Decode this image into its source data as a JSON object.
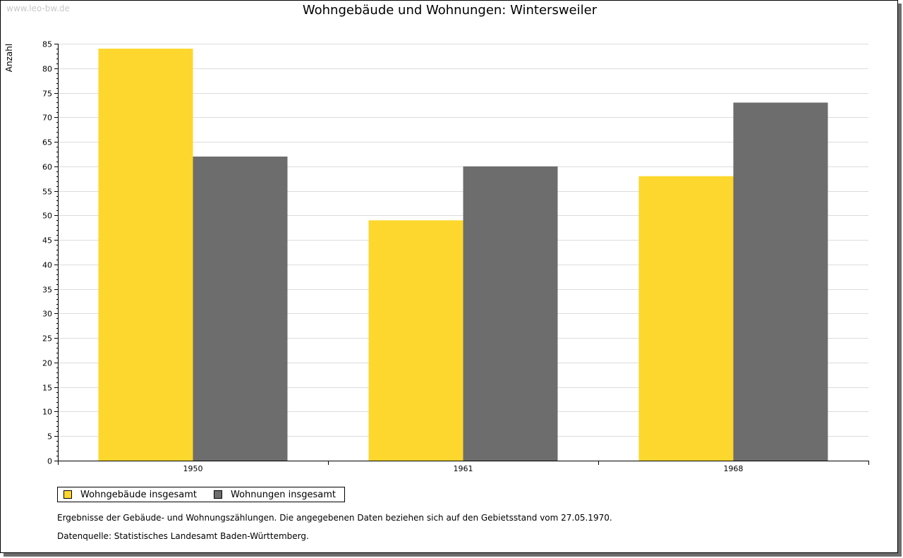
{
  "watermark": "www.leo-bw.de",
  "chart_data": {
    "type": "bar",
    "title": "Wohngebäude und Wohnungen: Wintersweiler",
    "xlabel": "",
    "ylabel": "Anzahl",
    "categories": [
      "1950",
      "1961",
      "1968"
    ],
    "series": [
      {
        "name": "Wohngebäude insgesamt",
        "values": [
          84,
          49,
          58
        ],
        "color": "#fdd72d"
      },
      {
        "name": "Wohnungen insgesamt",
        "values": [
          62,
          60,
          73
        ],
        "color": "#6d6d6d"
      }
    ],
    "ylim": [
      0,
      85
    ],
    "ytick_step": 5,
    "grid": true,
    "legend": "bottom-left"
  },
  "notes": {
    "line1": "Ergebnisse der Gebäude- und Wohnungszählungen. Die angegebenen Daten beziehen sich auf den Gebietsstand vom 27.05.1970.",
    "line2": "Datenquelle: Statistisches Landesamt Baden-Württemberg."
  }
}
